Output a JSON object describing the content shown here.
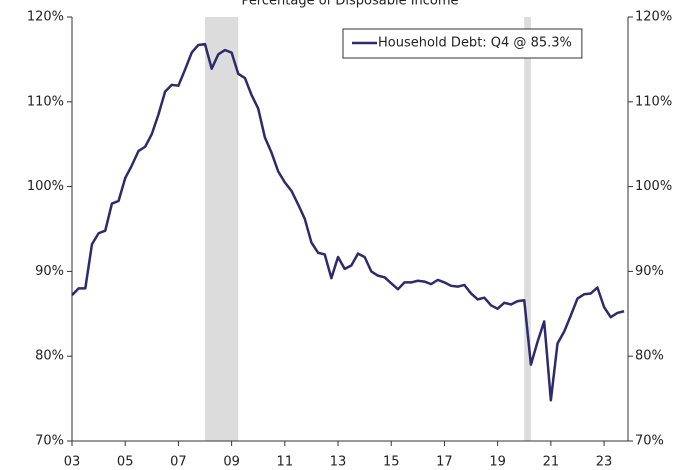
{
  "chart_data": {
    "type": "line",
    "title": "Percentage of Disposable Income",
    "x": [
      2003,
      2003.25,
      2003.5,
      2003.75,
      2004,
      2004.25,
      2004.5,
      2004.75,
      2005,
      2005.25,
      2005.5,
      2005.75,
      2006,
      2006.25,
      2006.5,
      2006.75,
      2007,
      2007.25,
      2007.5,
      2007.75,
      2008,
      2008.25,
      2008.5,
      2008.75,
      2009,
      2009.25,
      2009.5,
      2009.75,
      2010,
      2010.25,
      2010.5,
      2010.75,
      2011,
      2011.25,
      2011.5,
      2011.75,
      2012,
      2012.25,
      2012.5,
      2012.75,
      2013,
      2013.25,
      2013.5,
      2013.75,
      2014,
      2014.25,
      2014.5,
      2014.75,
      2015,
      2015.25,
      2015.5,
      2015.75,
      2016,
      2016.25,
      2016.5,
      2016.75,
      2017,
      2017.25,
      2017.5,
      2017.75,
      2018,
      2018.25,
      2018.5,
      2018.75,
      2019,
      2019.25,
      2019.5,
      2019.75,
      2020,
      2020.25,
      2020.5,
      2020.75,
      2021,
      2021.25,
      2021.5,
      2021.75,
      2022,
      2022.25,
      2022.5,
      2022.75,
      2023,
      2023.25,
      2023.5,
      2023.75
    ],
    "series": [
      {
        "name": "Household Debt: Q4 @ 85.3%",
        "color": "#2e2a6b",
        "values": [
          87.2,
          88.0,
          88.0,
          93.2,
          94.5,
          94.8,
          98.0,
          98.3,
          101.0,
          102.5,
          104.2,
          104.7,
          106.2,
          108.5,
          111.2,
          112.0,
          111.9,
          113.8,
          115.8,
          116.7,
          116.8,
          113.9,
          115.6,
          116.1,
          115.8,
          113.3,
          112.8,
          110.8,
          109.2,
          105.8,
          104.0,
          101.8,
          100.5,
          99.5,
          97.9,
          96.2,
          93.4,
          92.2,
          92.0,
          89.2,
          91.7,
          90.3,
          90.7,
          92.1,
          91.7,
          90.0,
          89.5,
          89.3,
          88.6,
          87.9,
          88.7,
          88.7,
          88.9,
          88.8,
          88.5,
          89.0,
          88.7,
          88.3,
          88.2,
          88.4,
          87.4,
          86.7,
          86.9,
          86.0,
          85.6,
          86.3,
          86.1,
          86.5,
          86.6,
          79.0,
          81.7,
          84.1,
          74.8,
          81.5,
          82.9,
          84.8,
          86.8,
          87.3,
          87.4,
          88.1,
          85.8,
          84.6,
          85.1,
          85.3
        ]
      }
    ],
    "recessions": [
      [
        2008.0,
        2009.25
      ],
      [
        2020.0,
        2020.25
      ]
    ],
    "recession_color": "#dcdcdc",
    "xlim": [
      2003,
      2023.9
    ],
    "xticks": [
      {
        "value": 2003,
        "label": "03"
      },
      {
        "value": 2005,
        "label": "05"
      },
      {
        "value": 2007,
        "label": "07"
      },
      {
        "value": 2009,
        "label": "09"
      },
      {
        "value": 2011,
        "label": "11"
      },
      {
        "value": 2013,
        "label": "13"
      },
      {
        "value": 2015,
        "label": "15"
      },
      {
        "value": 2017,
        "label": "17"
      },
      {
        "value": 2019,
        "label": "19"
      },
      {
        "value": 2021,
        "label": "21"
      },
      {
        "value": 2023,
        "label": "23"
      }
    ],
    "ylim": [
      70,
      120
    ],
    "yticks": [
      {
        "value": 70,
        "label": "70%"
      },
      {
        "value": 80,
        "label": "80%"
      },
      {
        "value": 90,
        "label": "90%"
      },
      {
        "value": 100,
        "label": "100%"
      },
      {
        "value": 110,
        "label": "110%"
      },
      {
        "value": 120,
        "label": "120%"
      }
    ],
    "y2lim": [
      70,
      120
    ],
    "y2ticks": [
      {
        "value": 70,
        "label": "70%"
      },
      {
        "value": 80,
        "label": "80%"
      },
      {
        "value": 90,
        "label": "90%"
      },
      {
        "value": 100,
        "label": "100%"
      },
      {
        "value": 110,
        "label": "110%"
      },
      {
        "value": 120,
        "label": "120%"
      }
    ],
    "legend": "upper right"
  }
}
